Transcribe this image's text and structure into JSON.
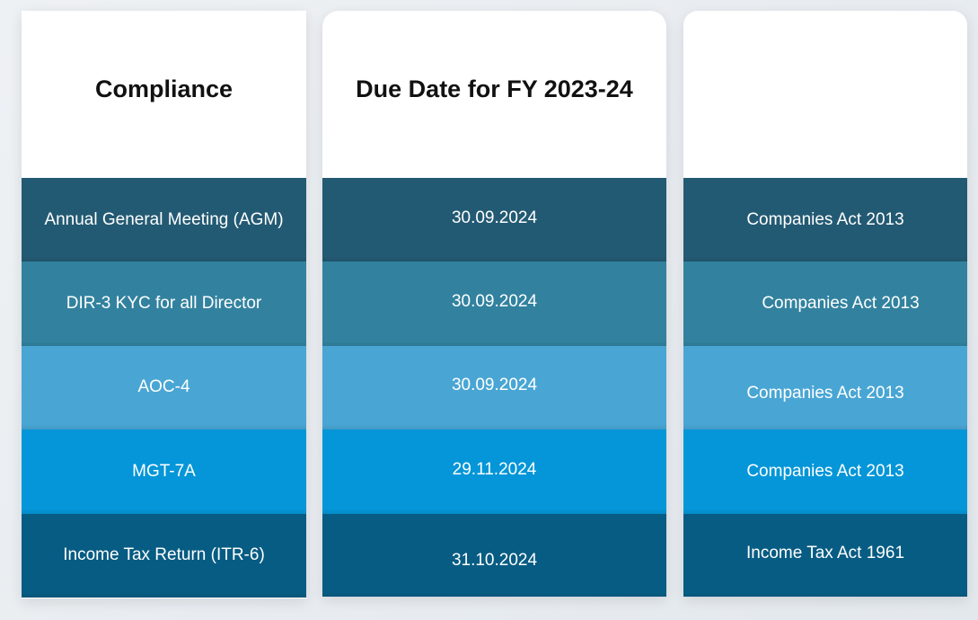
{
  "columns": [
    {
      "header": "Compliance",
      "rows": [
        "Annual General Meeting (AGM)",
        "DIR-3 KYC for all Director",
        "AOC-4",
        "MGT-7A",
        "Income Tax Return (ITR-6)"
      ]
    },
    {
      "header": "Due Date for FY 2023-24",
      "rows": [
        "30.09.2024",
        "30.09.2024",
        "30.09.2024",
        "29.11.2024",
        "31.10.2024"
      ]
    },
    {
      "header": "",
      "rows": [
        "Companies Act 2013",
        "Companies Act 2013",
        "Companies Act 2013",
        "Companies Act 2013",
        "Income Tax Act 1961"
      ]
    }
  ],
  "colors": {
    "row_1": "#235a73",
    "row_2": "#32829f",
    "row_3": "#49a6d4",
    "row_4": "#0496d8",
    "row_5": "#075c83",
    "header_background": "#ffffff",
    "page_background": "#e8ecf0"
  }
}
